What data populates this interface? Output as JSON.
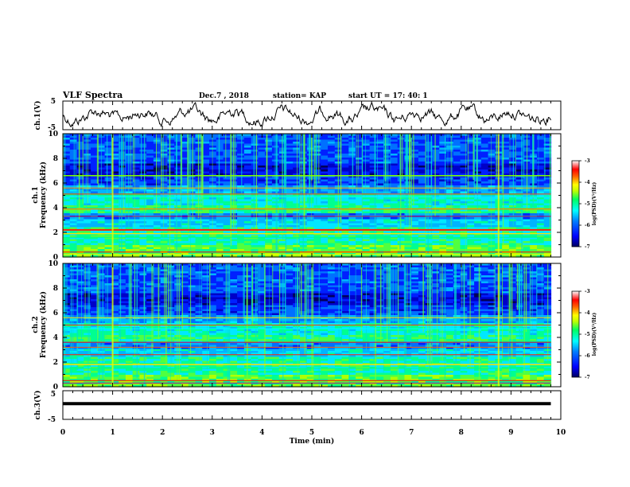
{
  "header": {
    "title": "VLF Spectra",
    "date": "Dec.7 , 2018",
    "station": "station= KAP",
    "start": "start UT = 17: 40: 1"
  },
  "chart_data": [
    {
      "name": "ch1-waveform",
      "type": "line",
      "ylabel": "ch.1(V)",
      "ylim": [
        -5,
        5
      ],
      "yticks": [
        "5",
        "-5"
      ],
      "x_range_min": [
        0,
        9.8
      ]
    },
    {
      "name": "ch1-spectrogram",
      "type": "heatmap",
      "ylabel": "ch.1\nFrequency (kHz)",
      "ylim": [
        0,
        10
      ],
      "yticks": [
        "0",
        "2",
        "4",
        "6",
        "8",
        "10"
      ],
      "x_range_min": [
        0,
        9.8
      ],
      "colorbar": {
        "label": "log(PSD)(V²/Hz)",
        "range": [
          -7,
          -3
        ],
        "ticks": [
          "-3",
          "-4",
          "-5",
          "-6",
          "-7"
        ]
      }
    },
    {
      "name": "ch2-spectrogram",
      "type": "heatmap",
      "ylabel": "ch.2\nFrequency (kHz)",
      "ylim": [
        0,
        10
      ],
      "yticks": [
        "0",
        "2",
        "4",
        "6",
        "8",
        "10"
      ],
      "x_range_min": [
        0,
        9.8
      ],
      "colorbar": {
        "label": "log(PSD)(V²/Hz)",
        "range": [
          -7,
          -3
        ],
        "ticks": [
          "-3",
          "-4",
          "-5",
          "-6",
          "-7"
        ]
      }
    },
    {
      "name": "ch3-waveform",
      "type": "line",
      "ylabel": "ch.3(V)",
      "ylim": [
        -5,
        5
      ],
      "yticks": [
        "5",
        "-5"
      ],
      "constant_value": 0.5,
      "x_range_min": [
        0,
        9.8
      ]
    }
  ],
  "xaxis": {
    "label": "Time (min)",
    "xlim": [
      0,
      10
    ],
    "ticks": [
      "0",
      "1",
      "2",
      "3",
      "4",
      "5",
      "6",
      "7",
      "8",
      "9",
      "10"
    ]
  },
  "colors": {
    "colormap": [
      "#000080",
      "#0000ff",
      "#0080ff",
      "#00ffff",
      "#00ff80",
      "#80ff00",
      "#ffff00",
      "#ff8000",
      "#ff0000",
      "#ffffff"
    ],
    "line": "#000000"
  }
}
